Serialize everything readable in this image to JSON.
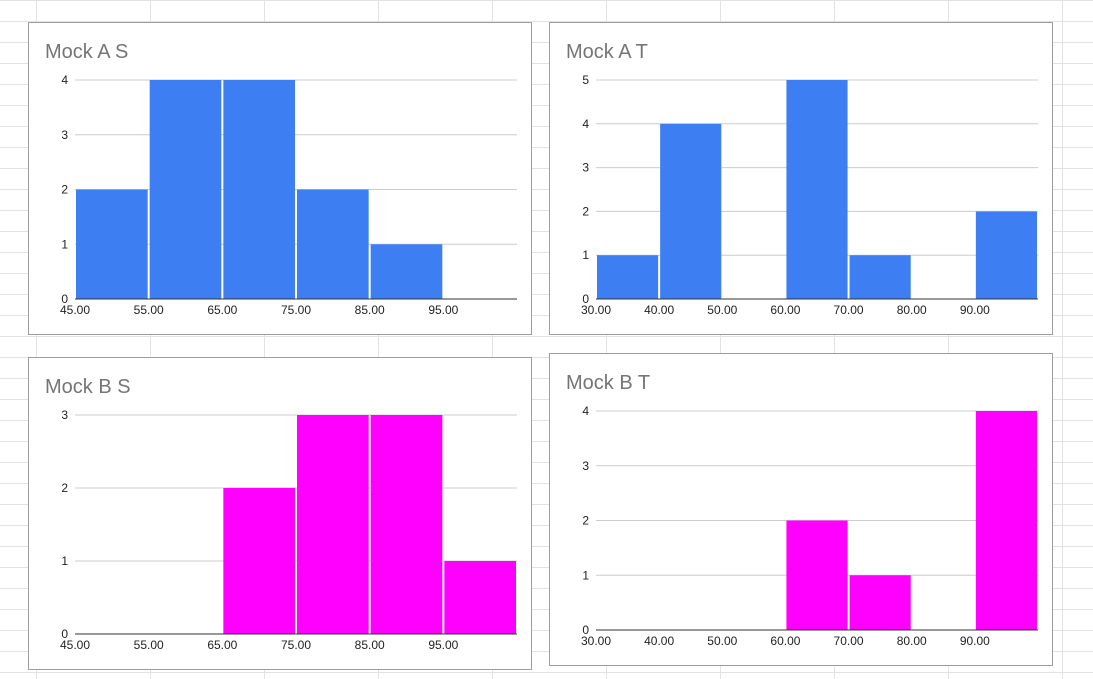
{
  "chart_data": [
    {
      "type": "bar",
      "title": "Mock A S",
      "x_ticks": [
        "45.00",
        "55.00",
        "65.00",
        "75.00",
        "85.00",
        "95.00"
      ],
      "bins": [
        {
          "from": 45,
          "to": 55,
          "value": 2
        },
        {
          "from": 55,
          "to": 65,
          "value": 4
        },
        {
          "from": 65,
          "to": 75,
          "value": 4
        },
        {
          "from": 75,
          "to": 85,
          "value": 2
        },
        {
          "from": 85,
          "to": 95,
          "value": 1
        }
      ],
      "xlim": [
        45,
        105
      ],
      "ylim": [
        0,
        4
      ],
      "y_ticks": [
        0,
        1,
        2,
        3,
        4
      ],
      "grid": true,
      "legend": "none",
      "color": "#3d7ff2"
    },
    {
      "type": "bar",
      "title": "Mock A T",
      "x_ticks": [
        "30.00",
        "40.00",
        "50.00",
        "60.00",
        "70.00",
        "80.00",
        "90.00"
      ],
      "bins": [
        {
          "from": 30,
          "to": 40,
          "value": 1
        },
        {
          "from": 40,
          "to": 50,
          "value": 4
        },
        {
          "from": 50,
          "to": 60,
          "value": 0
        },
        {
          "from": 60,
          "to": 70,
          "value": 5
        },
        {
          "from": 70,
          "to": 80,
          "value": 1
        },
        {
          "from": 80,
          "to": 90,
          "value": 0
        },
        {
          "from": 90,
          "to": 100,
          "value": 2
        }
      ],
      "xlim": [
        30,
        100
      ],
      "ylim": [
        0,
        5
      ],
      "y_ticks": [
        0,
        1,
        2,
        3,
        4,
        5
      ],
      "grid": true,
      "legend": "none",
      "color": "#3d7ff2"
    },
    {
      "type": "bar",
      "title": "Mock B S",
      "x_ticks": [
        "45.00",
        "55.00",
        "65.00",
        "75.00",
        "85.00",
        "95.00"
      ],
      "bins": [
        {
          "from": 45,
          "to": 55,
          "value": 0
        },
        {
          "from": 55,
          "to": 65,
          "value": 0
        },
        {
          "from": 65,
          "to": 75,
          "value": 2
        },
        {
          "from": 75,
          "to": 85,
          "value": 3
        },
        {
          "from": 85,
          "to": 95,
          "value": 3
        },
        {
          "from": 95,
          "to": 105,
          "value": 1
        }
      ],
      "xlim": [
        45,
        105
      ],
      "ylim": [
        0,
        3
      ],
      "y_ticks": [
        0,
        1,
        2,
        3
      ],
      "grid": true,
      "legend": "none",
      "color": "#ff00ff"
    },
    {
      "type": "bar",
      "title": "Mock B T",
      "x_ticks": [
        "30.00",
        "40.00",
        "50.00",
        "60.00",
        "70.00",
        "80.00",
        "90.00"
      ],
      "bins": [
        {
          "from": 30,
          "to": 40,
          "value": 0
        },
        {
          "from": 40,
          "to": 50,
          "value": 0
        },
        {
          "from": 50,
          "to": 60,
          "value": 0
        },
        {
          "from": 60,
          "to": 70,
          "value": 2
        },
        {
          "from": 70,
          "to": 80,
          "value": 1
        },
        {
          "from": 80,
          "to": 90,
          "value": 0
        },
        {
          "from": 90,
          "to": 100,
          "value": 4
        }
      ],
      "xlim": [
        30,
        100
      ],
      "ylim": [
        0,
        4
      ],
      "y_ticks": [
        0,
        1,
        2,
        3,
        4
      ],
      "grid": true,
      "legend": "none",
      "color": "#ff00ff"
    }
  ]
}
